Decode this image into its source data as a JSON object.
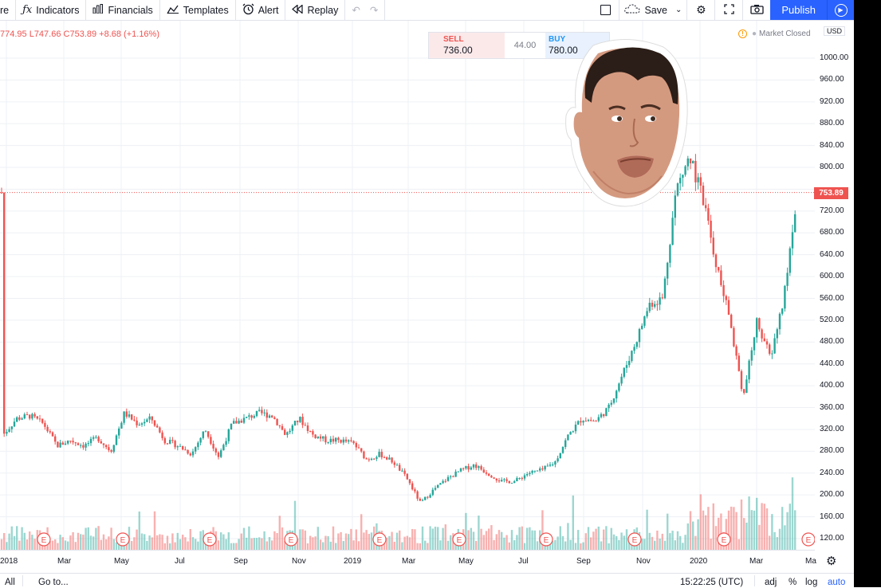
{
  "toolbar": {
    "partial_item": "re",
    "indicators_label": "Indicators",
    "financials_label": "Financials",
    "templates_label": "Templates",
    "alert_label": "Alert",
    "replay_label": "Replay",
    "save_label": "Save",
    "publish_label": "Publish",
    "icons": [
      "fx-icon",
      "bars-icon",
      "templates-icon",
      "alarm-clock-icon",
      "replay-icon",
      "undo-icon",
      "redo-icon",
      "square-icon",
      "cloud-icon",
      "chevron-down-icon",
      "gear-icon",
      "fullscreen-icon",
      "camera-icon",
      "play-icon"
    ]
  },
  "legend": {
    "ohlc_text": "774.95 L747.66 C753.89 +8.68 (+1.16%)"
  },
  "trade": {
    "sell_label": "SELL",
    "sell_price": "736.00",
    "spread": "44.00",
    "buy_label": "BUY",
    "buy_price": "780.00"
  },
  "market_status": "Market Closed",
  "currency": "USD",
  "price_axis": {
    "ticks": [
      "1000.00",
      "960.00",
      "920.00",
      "880.00",
      "840.00",
      "800.00",
      "720.00",
      "680.00",
      "640.00",
      "600.00",
      "560.00",
      "520.00",
      "480.00",
      "440.00",
      "400.00",
      "360.00",
      "320.00",
      "280.00",
      "240.00",
      "200.00",
      "160.00",
      "120.00"
    ],
    "last_price": "753.89"
  },
  "time_axis": {
    "labels": [
      "2018",
      "Mar",
      "May",
      "Jul",
      "Sep",
      "Nov",
      "2019",
      "Mar",
      "May",
      "Jul",
      "Sep",
      "Nov",
      "2020",
      "Mar",
      "Ma"
    ],
    "earnings_marker": "E"
  },
  "bottom_bar": {
    "range_label": "All",
    "goto_label": "Go to...",
    "clock": "15:22:25 (UTC)",
    "adj_label": "adj",
    "percent_label": "%",
    "log_label": "log",
    "auto_label": "auto"
  },
  "colors": {
    "up": "#26a69a",
    "down": "#ef5350",
    "accent": "#2962ff"
  },
  "chart_data": {
    "type": "candlestick",
    "title": "",
    "y_range": [
      120,
      1010
    ],
    "last_price": 753.89,
    "months": [
      "2018",
      "Mar",
      "May",
      "Jul",
      "Sep",
      "Nov",
      "2019",
      "Mar",
      "May",
      "Jul",
      "Sep",
      "Nov",
      "2020",
      "Mar"
    ],
    "approx_close_path": [
      [
        0,
        310
      ],
      [
        2,
        340
      ],
      [
        4,
        345
      ],
      [
        6,
        330
      ],
      [
        8,
        290
      ],
      [
        10,
        300
      ],
      [
        12,
        290
      ],
      [
        14,
        305
      ],
      [
        16,
        280
      ],
      [
        18,
        350
      ],
      [
        20,
        330
      ],
      [
        22,
        340
      ],
      [
        24,
        300
      ],
      [
        26,
        290
      ],
      [
        28,
        275
      ],
      [
        30,
        320
      ],
      [
        32,
        270
      ],
      [
        34,
        330
      ],
      [
        36,
        340
      ],
      [
        38,
        350
      ],
      [
        40,
        345
      ],
      [
        42,
        310
      ],
      [
        44,
        340
      ],
      [
        46,
        310
      ],
      [
        48,
        300
      ],
      [
        50,
        300
      ],
      [
        52,
        295
      ],
      [
        54,
        265
      ],
      [
        56,
        275
      ],
      [
        58,
        260
      ],
      [
        60,
        230
      ],
      [
        62,
        185
      ],
      [
        64,
        210
      ],
      [
        66,
        230
      ],
      [
        68,
        245
      ],
      [
        70,
        255
      ],
      [
        72,
        240
      ],
      [
        74,
        225
      ],
      [
        76,
        225
      ],
      [
        78,
        240
      ],
      [
        80,
        245
      ],
      [
        82,
        260
      ],
      [
        84,
        310
      ],
      [
        86,
        340
      ],
      [
        88,
        335
      ],
      [
        90,
        360
      ],
      [
        92,
        420
      ],
      [
        94,
        480
      ],
      [
        96,
        550
      ],
      [
        98,
        560
      ],
      [
        100,
        760
      ],
      [
        102,
        820
      ],
      [
        104,
        740
      ],
      [
        106,
        620
      ],
      [
        108,
        520
      ],
      [
        110,
        380
      ],
      [
        112,
        520
      ],
      [
        114,
        450
      ],
      [
        116,
        560
      ],
      [
        118,
        753.89
      ]
    ],
    "earnings_marker_count": 10
  }
}
